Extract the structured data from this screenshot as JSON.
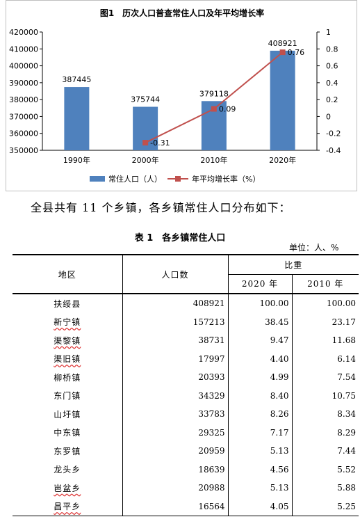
{
  "chart_data": {
    "type": "bar",
    "title": "图1　历次人口普查常住人口及年平均增长率",
    "categories": [
      "1990年",
      "2000年",
      "2010年",
      "2020年"
    ],
    "series": [
      {
        "name": "常住人口（人）",
        "kind": "bar",
        "axis": "left",
        "color": "#4f81bd",
        "values": [
          387445,
          375744,
          379118,
          408921
        ],
        "labels": [
          "387445",
          "375744",
          "379118",
          "408921"
        ]
      },
      {
        "name": "年平均增长率（%）",
        "kind": "line",
        "axis": "right",
        "color": "#c0504d",
        "points": [
          {
            "x": "2000年",
            "y": -0.31
          },
          {
            "x": "2010年",
            "y": 0.09
          },
          {
            "x": "2020年",
            "y": 0.76
          }
        ],
        "labels": [
          "-0.31",
          "0.09",
          "0.76"
        ]
      }
    ],
    "ylim": [
      350000,
      420000
    ],
    "yticks": [
      "350000",
      "360000",
      "370000",
      "380000",
      "390000",
      "400000",
      "410000",
      "420000"
    ],
    "y2lim": [
      -0.4,
      1
    ],
    "y2ticks": [
      "-0.4",
      "-0.2",
      "0",
      "0.2",
      "0.4",
      "0.6",
      "0.8",
      "1"
    ],
    "legend_position": "bottom",
    "grid": false
  },
  "intro_text": "全县共有 11 个乡镇，各乡镇常住人口分布如下：",
  "table": {
    "title": "表 1　各乡镇常住人口",
    "unit": "单位：人、%",
    "headers": {
      "region": "地区",
      "population": "人口数",
      "share": "比重",
      "y2020": "2020 年",
      "y2010": "2010 年"
    },
    "rows": [
      {
        "name": "扶绥县",
        "pop": "408921",
        "p2020": "100.00",
        "p2010": "100.00"
      },
      {
        "name": "新宁镇",
        "pop": "157213",
        "p2020": "38.45",
        "p2010": "23.17"
      },
      {
        "name": "渠黎镇",
        "pop": "38731",
        "p2020": "9.47",
        "p2010": "11.68"
      },
      {
        "name": "渠旧镇",
        "pop": "17997",
        "p2020": "4.40",
        "p2010": "6.14"
      },
      {
        "name": "柳桥镇",
        "pop": "20393",
        "p2020": "4.99",
        "p2010": "7.54"
      },
      {
        "name": "东门镇",
        "pop": "34329",
        "p2020": "8.40",
        "p2010": "10.75"
      },
      {
        "name": "山圩镇",
        "pop": "33783",
        "p2020": "8.26",
        "p2010": "8.34"
      },
      {
        "name": "中东镇",
        "pop": "29325",
        "p2020": "7.17",
        "p2010": "8.29"
      },
      {
        "name": "东罗镇",
        "pop": "20959",
        "p2020": "5.13",
        "p2010": "7.44"
      },
      {
        "name": "龙头乡",
        "pop": "18639",
        "p2020": "4.56",
        "p2010": "5.52"
      },
      {
        "name": "岜盆乡",
        "pop": "20988",
        "p2020": "5.13",
        "p2010": "5.88"
      },
      {
        "name": "昌平乡",
        "pop": "16564",
        "p2020": "4.05",
        "p2010": "5.25"
      }
    ]
  }
}
